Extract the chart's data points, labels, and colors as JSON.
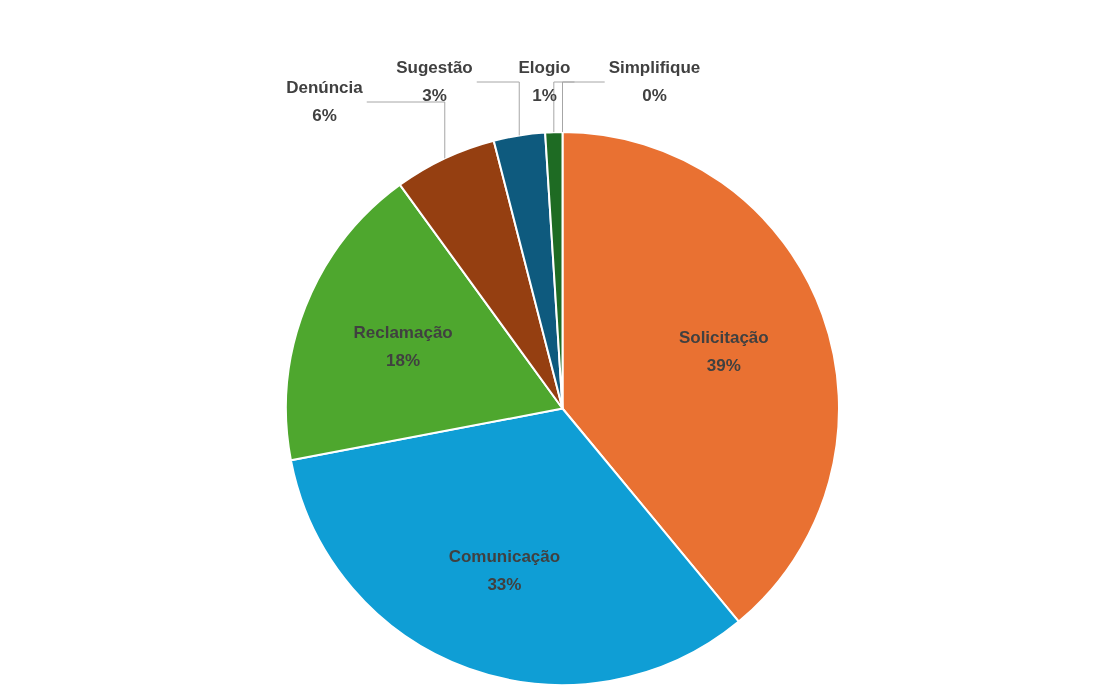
{
  "chart_data": {
    "type": "pie",
    "categories": [
      "Solicitação",
      "Comunicação",
      "Reclamação",
      "Denúncia",
      "Sugestão",
      "Elogio",
      "Simplifique"
    ],
    "values": [
      39,
      33,
      18,
      6,
      3,
      1,
      0
    ],
    "value_labels": [
      "39%",
      "33%",
      "18%",
      "6%",
      "3%",
      "1%",
      "0%"
    ],
    "colors": [
      "#e97132",
      "#0f9ed5",
      "#4ea72e",
      "#953f11",
      "#0e5a7e",
      "#1e6b23",
      "#c55a11"
    ],
    "legend": false
  }
}
